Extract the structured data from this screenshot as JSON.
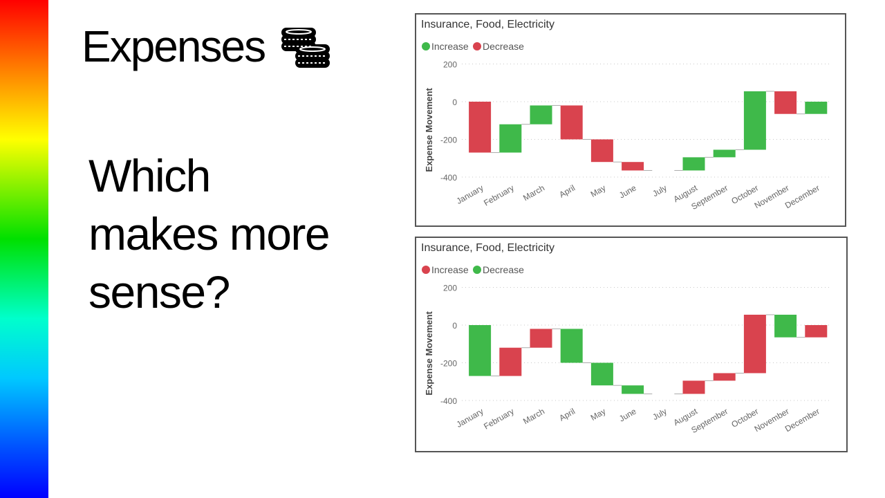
{
  "slide": {
    "title": "Expenses",
    "title_icon": "coins-icon",
    "question_lines": [
      "Which",
      "makes more",
      "sense?"
    ]
  },
  "chart_data": [
    {
      "type": "waterfall",
      "title": "Insurance, Food, Electricity",
      "ylabel": "Expense Movement",
      "xlabel": "",
      "ylim": [
        -400,
        200
      ],
      "yticks": [
        200,
        0,
        -200,
        -400
      ],
      "grid": true,
      "legend": [
        {
          "name": "Increase",
          "color": "#3fb94a"
        },
        {
          "name": "Decrease",
          "color": "#d9434e"
        }
      ],
      "legend_position": "top-left",
      "categories": [
        "January",
        "February",
        "March",
        "April",
        "May",
        "June",
        "July",
        "August",
        "September",
        "October",
        "November",
        "December"
      ],
      "values": [
        -270,
        150,
        100,
        -180,
        -120,
        -45,
        0,
        70,
        40,
        310,
        -120,
        65
      ],
      "colors": {
        "positive": "#3fb94a",
        "negative": "#d9434e"
      }
    },
    {
      "type": "waterfall",
      "title": "Insurance, Food, Electricity",
      "ylabel": "Expense Movement",
      "xlabel": "",
      "ylim": [
        -400,
        200
      ],
      "yticks": [
        200,
        0,
        -200,
        -400
      ],
      "grid": true,
      "legend": [
        {
          "name": "Increase",
          "color": "#d9434e"
        },
        {
          "name": "Decrease",
          "color": "#3fb94a"
        }
      ],
      "legend_position": "top-left",
      "categories": [
        "January",
        "February",
        "March",
        "April",
        "May",
        "June",
        "July",
        "August",
        "September",
        "October",
        "November",
        "December"
      ],
      "values": [
        -270,
        150,
        100,
        -180,
        -120,
        -45,
        0,
        70,
        40,
        310,
        -120,
        65
      ],
      "colors": {
        "positive": "#d9434e",
        "negative": "#3fb94a"
      }
    }
  ]
}
